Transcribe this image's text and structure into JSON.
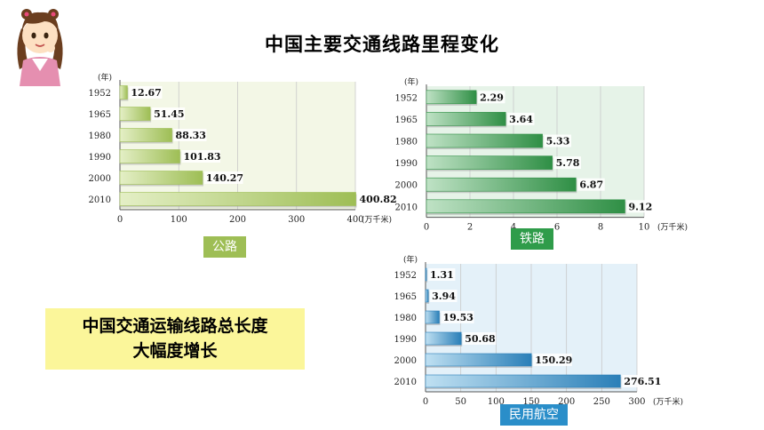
{
  "page": {
    "title": "中国主要交通线路里程变化"
  },
  "highlight": {
    "line1": "中国交通运输线路总长度",
    "line2": "大幅度增长"
  },
  "colors": {
    "road": "#9ebe55",
    "rail": "#2f9c4a",
    "air": "#2a8ec9",
    "highlight": "#fbf69a"
  },
  "chart_data": [
    {
      "type": "bar",
      "orientation": "horizontal",
      "title": "公路",
      "year_label": "(年)",
      "unit_label": "(万千米)",
      "categories": [
        "1952",
        "1965",
        "1980",
        "1990",
        "2000",
        "2010"
      ],
      "values": [
        12.67,
        51.45,
        88.33,
        101.83,
        140.27,
        400.82
      ],
      "value_labels": [
        "12.67",
        "51.45",
        "88.33",
        "101.83",
        "140.27",
        "400.82"
      ],
      "xlim": [
        0,
        400
      ],
      "xticks": [
        "0",
        "100",
        "200",
        "300",
        "400"
      ],
      "grid": true
    },
    {
      "type": "bar",
      "orientation": "horizontal",
      "title": "铁路",
      "year_label": "(年)",
      "unit_label": "(万千米)",
      "categories": [
        "1952",
        "1965",
        "1980",
        "1990",
        "2000",
        "2010"
      ],
      "values": [
        2.29,
        3.64,
        5.33,
        5.78,
        6.87,
        9.12
      ],
      "value_labels": [
        "2.29",
        "3.64",
        "5.33",
        "5.78",
        "6.87",
        "9.12"
      ],
      "xlim": [
        0,
        10
      ],
      "xticks": [
        "0",
        "2",
        "4",
        "6",
        "8",
        "10"
      ],
      "grid": true
    },
    {
      "type": "bar",
      "orientation": "horizontal",
      "title": "民用航空",
      "year_label": "(年)",
      "unit_label": "(万千米)",
      "categories": [
        "1952",
        "1965",
        "1980",
        "1990",
        "2000",
        "2010"
      ],
      "values": [
        1.31,
        3.94,
        19.53,
        50.68,
        150.29,
        276.51
      ],
      "value_labels": [
        "1.31",
        "3.94",
        "19.53",
        "50.68",
        "150.29",
        "276.51"
      ],
      "xlim": [
        0,
        300
      ],
      "xticks": [
        "0",
        "50",
        "100",
        "150",
        "200",
        "250",
        "300"
      ],
      "grid": true
    }
  ]
}
